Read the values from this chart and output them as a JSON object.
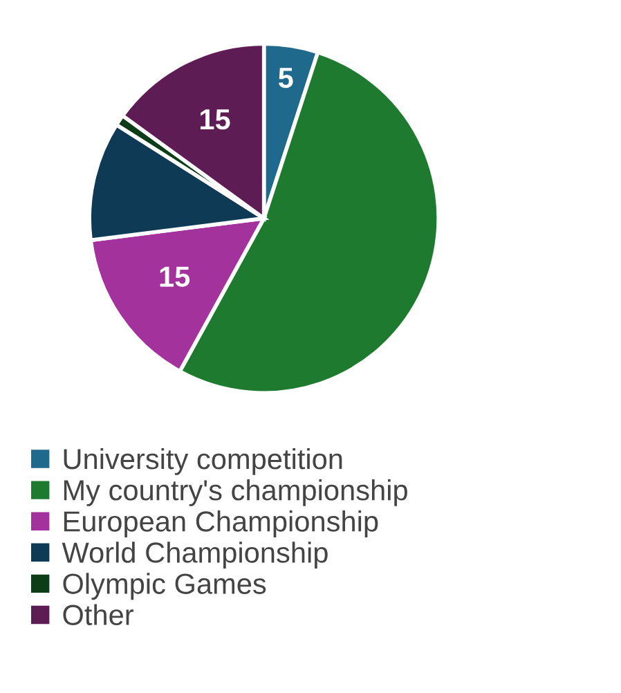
{
  "chart_data": {
    "type": "pie",
    "categories": [
      "University competition",
      "My country's championship",
      "European Championship",
      "World Championship",
      "Olympic Games",
      "Other"
    ],
    "values": [
      5,
      53,
      15,
      11,
      1,
      15
    ],
    "value_labels": [
      "5",
      null,
      "15",
      null,
      null,
      "15"
    ],
    "colors": [
      "#1f6a8c",
      "#1e7a2e",
      "#a3329c",
      "#0f3a55",
      "#0d3d16",
      "#5e1c55"
    ],
    "legend": "bottom"
  }
}
